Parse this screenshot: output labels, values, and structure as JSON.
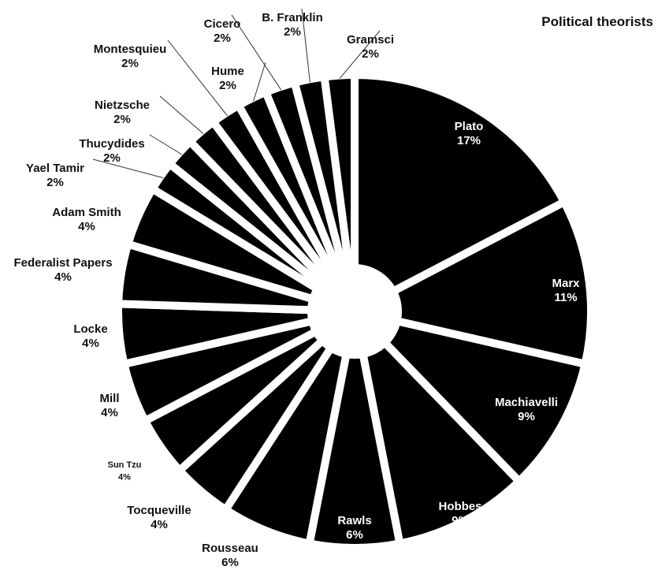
{
  "chart_data": {
    "type": "pie",
    "title": "Political theorists",
    "style": {
      "slice_color": "#000000",
      "gap_color": "#ffffff",
      "connector_color": "#333333"
    },
    "slices": [
      {
        "label": "Plato",
        "value": 17,
        "display": "17%"
      },
      {
        "label": "Marx",
        "value": 11,
        "display": "11%"
      },
      {
        "label": "Machiavelli",
        "value": 9,
        "display": "9%"
      },
      {
        "label": "Hobbes",
        "value": 9,
        "display": "9%"
      },
      {
        "label": "Rawls",
        "value": 6,
        "display": "6%"
      },
      {
        "label": "Rousseau",
        "value": 6,
        "display": "6%"
      },
      {
        "label": "Tocqueville",
        "value": 4,
        "display": "4%"
      },
      {
        "label": "Sun Tzu",
        "value": 4,
        "display": "4%"
      },
      {
        "label": "Mill",
        "value": 4,
        "display": "4%"
      },
      {
        "label": "Locke",
        "value": 4,
        "display": "4%"
      },
      {
        "label": "Federalist Papers",
        "value": 4,
        "display": "4%"
      },
      {
        "label": "Adam Smith",
        "value": 4,
        "display": "4%"
      },
      {
        "label": "Yael Tamir",
        "value": 2,
        "display": "2%"
      },
      {
        "label": "Thucydides",
        "value": 2,
        "display": "2%"
      },
      {
        "label": "Nietzsche",
        "value": 2,
        "display": "2%"
      },
      {
        "label": "Montesquieu",
        "value": 2,
        "display": "2%"
      },
      {
        "label": "Hume",
        "value": 2,
        "display": "2%"
      },
      {
        "label": "Cicero",
        "value": 2,
        "display": "2%"
      },
      {
        "label": "B. Franklin",
        "value": 2,
        "display": "2%"
      },
      {
        "label": "Gramsci",
        "value": 2,
        "display": "2%"
      }
    ]
  }
}
